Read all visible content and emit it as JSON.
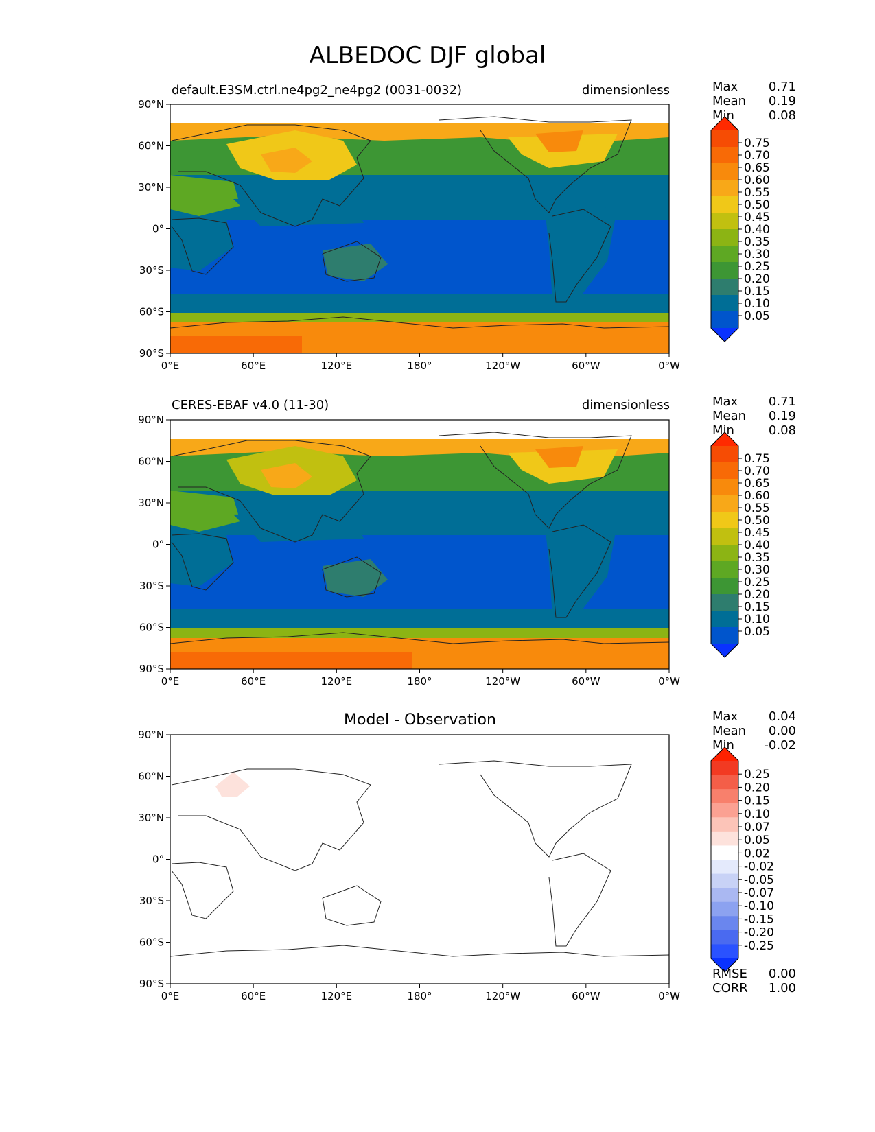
{
  "figure": {
    "title": "ALBEDOC DJF global"
  },
  "x_ticks": [
    "0°E",
    "60°E",
    "120°E",
    "180°",
    "120°W",
    "60°W",
    "0°W"
  ],
  "y_ticks": [
    "90°N",
    "60°N",
    "30°N",
    "0°",
    "30°S",
    "60°S",
    "90°S"
  ],
  "stat_labels": {
    "max": "Max",
    "mean": "Mean",
    "min": "Min",
    "rmse": "RMSE",
    "corr": "CORR"
  },
  "panels": [
    {
      "left_title": "default.E3SM.ctrl.ne4pg2_ne4pg2 (0031-0032)",
      "right_title": "dimensionless",
      "center_title": "",
      "stats": {
        "max": "0.71",
        "mean": "0.19",
        "min": "0.08"
      },
      "colorbar_labels": [
        "0.75",
        "0.70",
        "0.65",
        "0.60",
        "0.55",
        "0.50",
        "0.45",
        "0.40",
        "0.35",
        "0.30",
        "0.25",
        "0.20",
        "0.15",
        "0.10",
        "0.05"
      ]
    },
    {
      "left_title": "CERES-EBAF v4.0 (11-30)",
      "right_title": "dimensionless",
      "center_title": "",
      "stats": {
        "max": "0.71",
        "mean": "0.19",
        "min": "0.08"
      },
      "colorbar_labels": [
        "0.75",
        "0.70",
        "0.65",
        "0.60",
        "0.55",
        "0.50",
        "0.45",
        "0.40",
        "0.35",
        "0.30",
        "0.25",
        "0.20",
        "0.15",
        "0.10",
        "0.05"
      ]
    },
    {
      "left_title": "",
      "right_title": "",
      "center_title": "Model - Observation",
      "stats": {
        "max": "0.04",
        "mean": "0.00",
        "min": "-0.02"
      },
      "metrics": {
        "rmse": "0.00",
        "corr": "1.00"
      },
      "colorbar_labels": [
        "0.25",
        "0.20",
        "0.15",
        "0.10",
        "0.07",
        "0.05",
        "0.02",
        "-0.02",
        "-0.05",
        "-0.07",
        "-0.10",
        "-0.15",
        "-0.20",
        "-0.25"
      ]
    }
  ],
  "colors": {
    "field_cmap": [
      "#0a32ff",
      "#0055cc",
      "#006e96",
      "#2e7d6e",
      "#3d9634",
      "#5ea823",
      "#8cb414",
      "#c1c010",
      "#f0c818",
      "#f8a818",
      "#f88a0c",
      "#f86a06",
      "#f64c04",
      "#ff2a00"
    ],
    "diff_cmap": [
      "#0a32ff",
      "#2a52ff",
      "#4a6af0",
      "#6a86ee",
      "#8ca2f0",
      "#aab8f2",
      "#c8d2f6",
      "#e4eafc",
      "#ffffff",
      "#fde2dc",
      "#fcc4b8",
      "#fba192",
      "#f8806c",
      "#f45e48",
      "#f23a22",
      "#ff2200"
    ]
  }
}
